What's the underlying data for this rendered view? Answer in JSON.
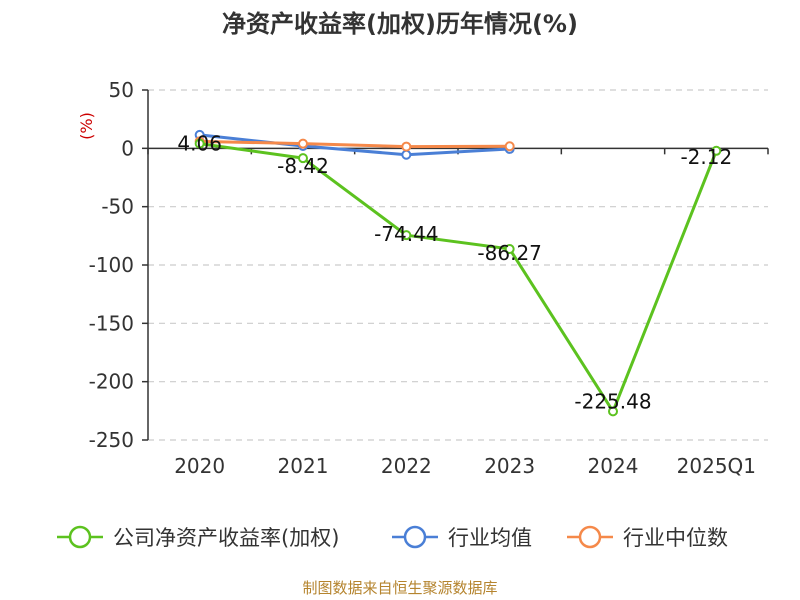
{
  "chart_data": {
    "type": "line",
    "title": "净资产收益率(加权)历年情况(%)",
    "ylabel": "(%)",
    "categories": [
      "2020",
      "2021",
      "2022",
      "2023",
      "2024",
      "2025Q1"
    ],
    "ylim": [
      -250,
      50
    ],
    "yticks": [
      "50",
      "0",
      "-50",
      "-100",
      "-150",
      "-200",
      "-250"
    ],
    "ytick_values": [
      50,
      0,
      -50,
      -100,
      -150,
      -200,
      -250
    ],
    "grid": true,
    "legend_position": "bottom",
    "series": [
      {
        "name": "公司净资产收益率(加权)",
        "color": "#5cc21f",
        "values": [
          4.06,
          -8.42,
          -74.44,
          -86.27,
          -225.48,
          -2.12
        ],
        "labels": [
          "4.06",
          "-8.42",
          "-74.44",
          "-86.27",
          "-225.48",
          "-2.12"
        ]
      },
      {
        "name": "行业均值",
        "color": "#4a7fd6",
        "values": [
          11.5,
          2.0,
          -5.5,
          -0.5,
          null,
          null
        ]
      },
      {
        "name": "行业中位数",
        "color": "#f5894a",
        "values": [
          6.0,
          4.0,
          1.5,
          1.8,
          null,
          null
        ]
      }
    ]
  },
  "footer": {
    "source": "制图数据来自恒生聚源数据库"
  }
}
